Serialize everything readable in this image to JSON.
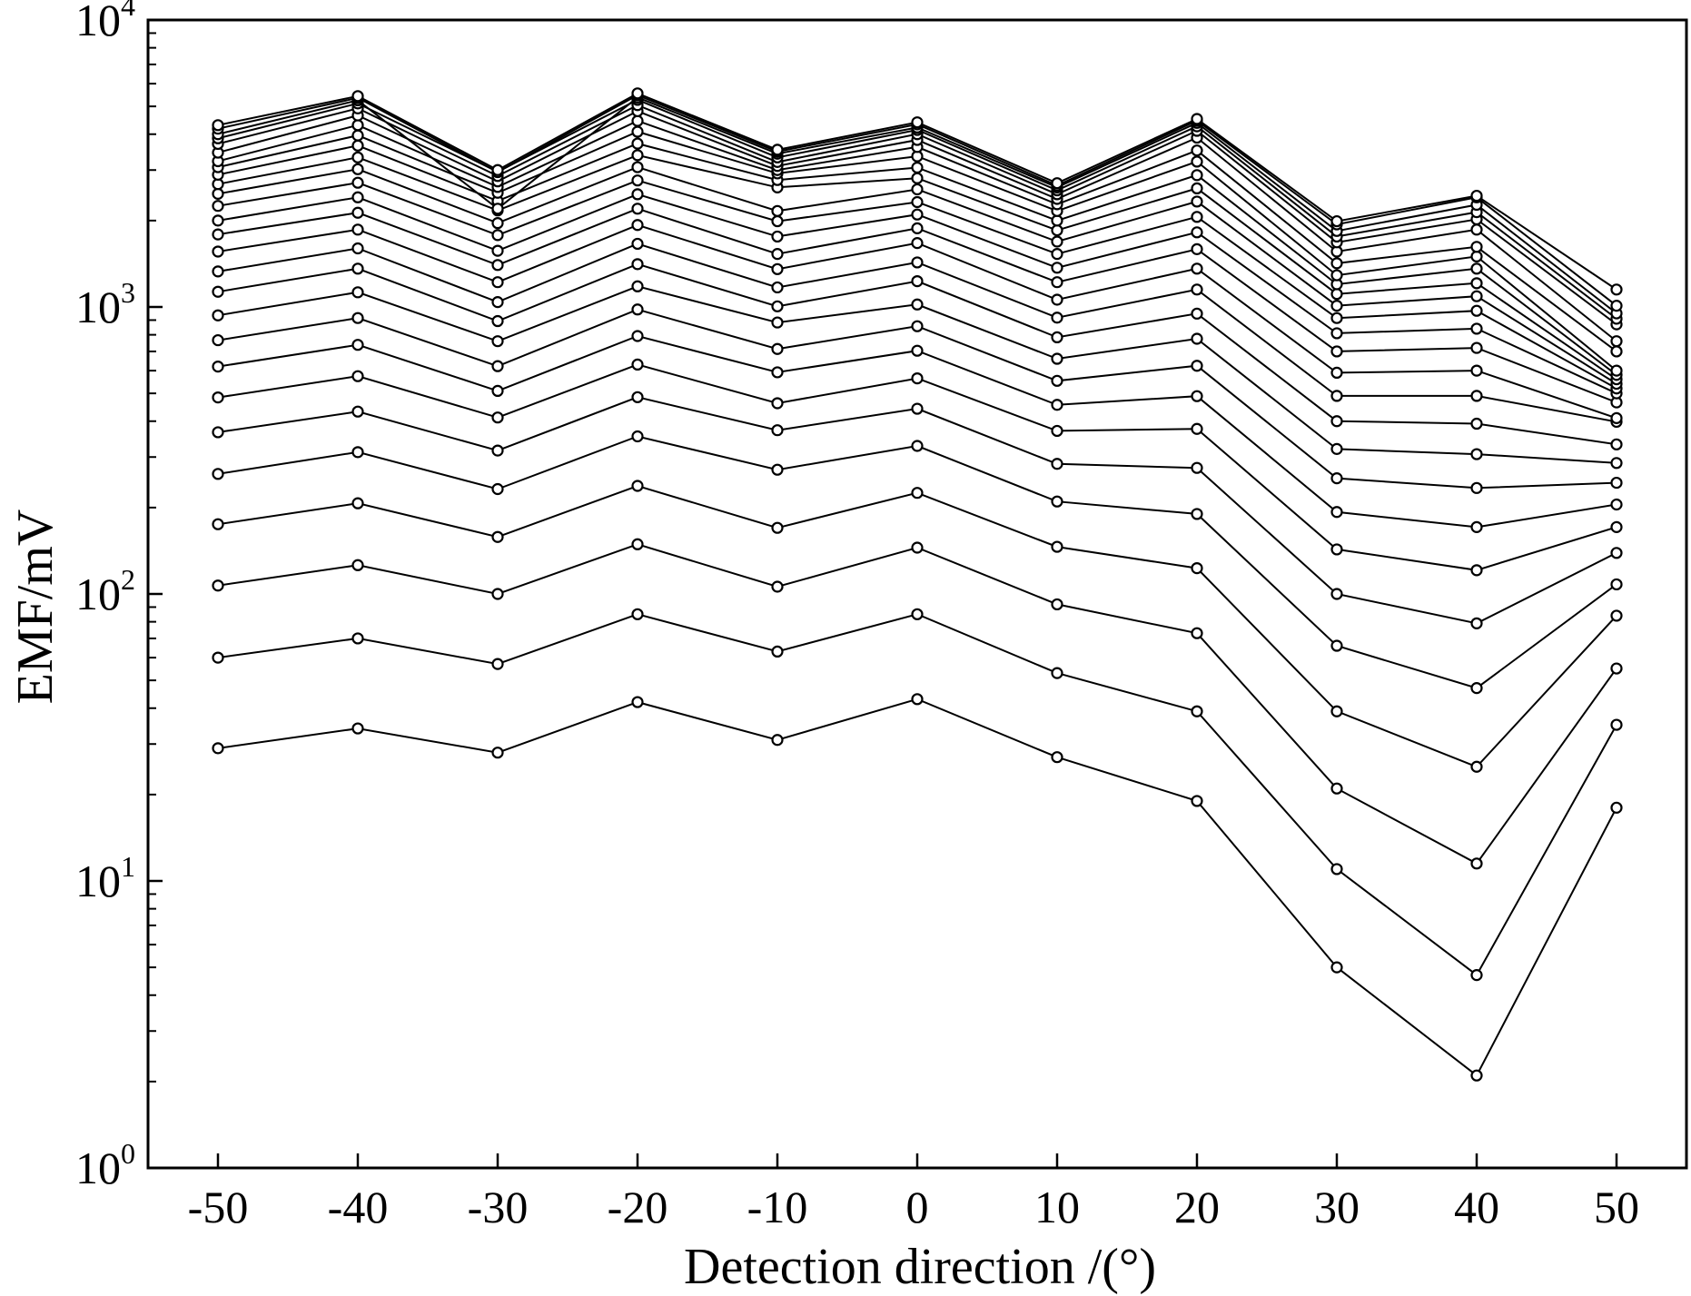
{
  "chart_data": {
    "type": "line",
    "xlabel": "Detection direction /(°)",
    "ylabel": "EMF/mV",
    "yscale": "log",
    "ylim": [
      1,
      10000
    ],
    "xlim": [
      -55,
      55
    ],
    "x": [
      -50,
      -40,
      -30,
      -20,
      -10,
      0,
      10,
      20,
      30,
      40,
      50
    ],
    "x_ticks": [
      "-50",
      "-40",
      "-30",
      "-20",
      "-10",
      "0",
      "10",
      "20",
      "30",
      "40",
      "50"
    ],
    "y_ticks": [
      {
        "value": 1,
        "base": "10",
        "exp": "0"
      },
      {
        "value": 10,
        "base": "10",
        "exp": "1"
      },
      {
        "value": 100,
        "base": "10",
        "exp": "2"
      },
      {
        "value": 1000,
        "base": "10",
        "exp": "3"
      },
      {
        "value": 10000,
        "base": "10",
        "exp": "4"
      }
    ],
    "grid": false,
    "marker": "open-circle",
    "series": [
      {
        "values": [
          29,
          34,
          28,
          42,
          31,
          43,
          27,
          19,
          5,
          2.1,
          18
        ]
      },
      {
        "values": [
          60,
          70,
          57,
          85,
          63,
          85,
          53,
          39,
          11,
          4.7,
          35
        ]
      },
      {
        "values": [
          107,
          126,
          100,
          149,
          106,
          145,
          92,
          73,
          21,
          11.5,
          55
        ]
      },
      {
        "values": [
          175,
          207,
          158,
          238,
          170,
          225,
          146,
          123,
          39,
          25,
          84
        ]
      },
      {
        "values": [
          262,
          312,
          232,
          354,
          271,
          328,
          210,
          190,
          66,
          47,
          108
        ]
      },
      {
        "values": [
          366,
          432,
          316,
          485,
          372,
          442,
          284,
          275,
          100,
          79,
          139
        ]
      },
      {
        "values": [
          484,
          574,
          412,
          630,
          462,
          564,
          370,
          376,
          143,
          121,
          171
        ]
      },
      {
        "values": [
          620,
          738,
          510,
          792,
          592,
          704,
          456,
          489,
          193,
          171,
          205
        ]
      },
      {
        "values": [
          766,
          915,
          622,
          980,
          714,
          857,
          553,
          624,
          253,
          234,
          244
        ]
      },
      {
        "values": [
          935,
          1125,
          760,
          1180,
          883,
          1020,
          660,
          775,
          320,
          307,
          286
        ]
      },
      {
        "values": [
          1130,
          1360,
          893,
          1410,
          1005,
          1230,
          784,
          948,
          400,
          392,
          332
        ]
      },
      {
        "values": [
          1330,
          1600,
          1040,
          1660,
          1170,
          1430,
          918,
          1150,
          490,
          490,
          398
        ]
      },
      {
        "values": [
          1560,
          1860,
          1220,
          1930,
          1355,
          1670,
          1060,
          1360,
          590,
          600,
          410
        ]
      },
      {
        "values": [
          1790,
          2130,
          1400,
          2200,
          1530,
          1880,
          1220,
          1590,
          700,
          720,
          465
        ]
      },
      {
        "values": [
          2000,
          2410,
          1570,
          2470,
          1760,
          2100,
          1370,
          1820,
          810,
          840,
          500
        ]
      },
      {
        "values": [
          2250,
          2710,
          1780,
          2760,
          1990,
          2320,
          1530,
          2060,
          915,
          970,
          520
        ]
      },
      {
        "values": [
          2480,
          3020,
          1960,
          3070,
          2160,
          2570,
          1690,
          2330,
          1010,
          1090,
          540
        ]
      },
      {
        "values": [
          2680,
          3320,
          2170,
          3380,
          2610,
          2810,
          1850,
          2590,
          1110,
          1210,
          560
        ]
      },
      {
        "values": [
          2890,
          3650,
          2340,
          3710,
          2770,
          3060,
          2000,
          2880,
          1200,
          1360,
          580
        ]
      },
      {
        "values": [
          3070,
          3960,
          2500,
          4080,
          2920,
          3350,
          2160,
          3210,
          1290,
          1500,
          600
        ]
      },
      {
        "values": [
          3220,
          4300,
          2620,
          4450,
          3000,
          3610,
          2280,
          3510,
          1420,
          1620,
          700
        ]
      },
      {
        "values": [
          3450,
          4650,
          2740,
          4810,
          3100,
          3820,
          2380,
          3890,
          1560,
          1860,
          760
        ]
      },
      {
        "values": [
          3700,
          4920,
          2860,
          5050,
          3200,
          4000,
          2470,
          4110,
          1680,
          2020,
          870
        ]
      },
      {
        "values": [
          3870,
          5120,
          2960,
          5270,
          3320,
          4140,
          2550,
          4260,
          1760,
          2140,
          910
        ]
      },
      {
        "values": [
          4000,
          5250,
          2200,
          5370,
          3420,
          4220,
          2610,
          4380,
          1840,
          2270,
          950
        ]
      },
      {
        "values": [
          4180,
          5350,
          2950,
          5470,
          3480,
          4330,
          2650,
          4460,
          1940,
          2410,
          1010
        ]
      },
      {
        "values": [
          4300,
          5430,
          3000,
          5550,
          3530,
          4400,
          2700,
          4520,
          1990,
          2440,
          1150
        ]
      }
    ]
  }
}
